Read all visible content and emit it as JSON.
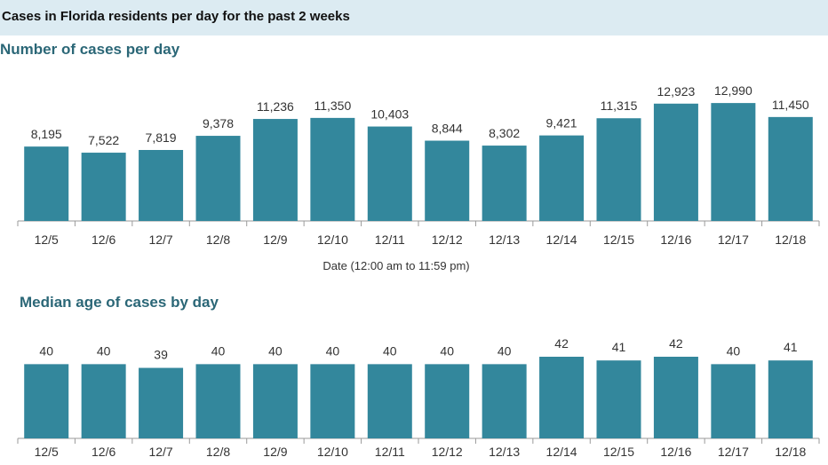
{
  "header": {
    "title": "Cases in Florida residents per day for the past 2 weeks"
  },
  "colors": {
    "bar": "#33879c",
    "axis": "#9a9a9a",
    "header_bg": "#dcebf2",
    "title": "#2b6777"
  },
  "chart_data": [
    {
      "type": "bar",
      "title": "Number of cases per day",
      "xlabel": "Date (12:00 am to 11:59 pm)",
      "ylabel": "",
      "ylim": [
        0,
        13000
      ],
      "grid": false,
      "categories": [
        "12/5",
        "12/6",
        "12/7",
        "12/8",
        "12/9",
        "12/10",
        "12/11",
        "12/12",
        "12/13",
        "12/14",
        "12/15",
        "12/16",
        "12/17",
        "12/18"
      ],
      "values": [
        8195,
        7522,
        7819,
        9378,
        11236,
        11350,
        10403,
        8844,
        8302,
        9421,
        11315,
        12923,
        12990,
        11450
      ],
      "value_labels": [
        "8,195",
        "7,522",
        "7,819",
        "9,378",
        "11,236",
        "11,350",
        "10,403",
        "8,844",
        "8,302",
        "9,421",
        "11,315",
        "12,923",
        "12,990",
        "11,450"
      ]
    },
    {
      "type": "bar",
      "title": "Median age of cases by day",
      "xlabel": "",
      "ylabel": "",
      "grid": false,
      "categories": [
        "12/5",
        "12/6",
        "12/7",
        "12/8",
        "12/9",
        "12/10",
        "12/11",
        "12/12",
        "12/13",
        "12/14",
        "12/15",
        "12/16",
        "12/17",
        "12/18"
      ],
      "values": [
        40,
        40,
        39,
        40,
        40,
        40,
        40,
        40,
        40,
        42,
        41,
        42,
        40,
        41
      ],
      "value_labels": [
        "40",
        "40",
        "39",
        "40",
        "40",
        "40",
        "40",
        "40",
        "40",
        "42",
        "41",
        "42",
        "40",
        "41"
      ]
    }
  ]
}
